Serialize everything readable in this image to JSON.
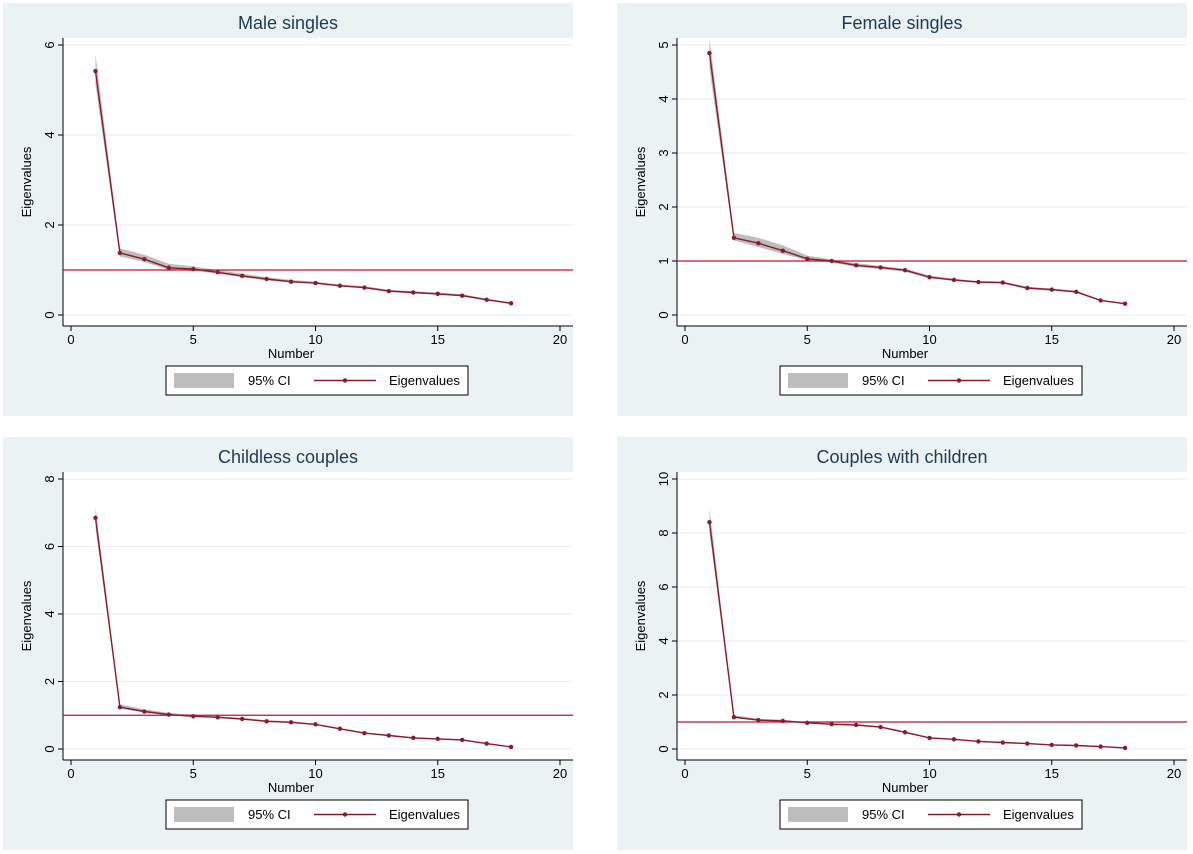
{
  "chart_data": [
    {
      "type": "line",
      "title": "Male singles",
      "xlabel": "Number",
      "ylabel": "Eigenvalues",
      "xlim": [
        0,
        20
      ],
      "ylim": [
        0,
        6
      ],
      "xticks": [
        0,
        5,
        10,
        15,
        20
      ],
      "yticks": [
        0,
        2,
        4,
        6
      ],
      "grid": true,
      "reference_line": {
        "y": 1,
        "color": "#c0152f"
      },
      "legend": {
        "position": "bottom",
        "entries": [
          "95% CI",
          "Eigenvalues"
        ]
      },
      "series": [
        {
          "name": "Eigenvalues",
          "color": "#8b1a2b",
          "x": [
            1,
            2,
            3,
            4,
            5,
            6,
            7,
            8,
            9,
            10,
            11,
            12,
            13,
            14,
            15,
            16,
            17,
            18
          ],
          "values": [
            5.42,
            1.38,
            1.24,
            1.05,
            1.02,
            0.95,
            0.87,
            0.8,
            0.74,
            0.71,
            0.65,
            0.61,
            0.53,
            0.5,
            0.47,
            0.43,
            0.34,
            0.26
          ]
        },
        {
          "name": "95% CI",
          "color": "#bdbdbd",
          "x": [
            1,
            2,
            3,
            4,
            5,
            6,
            7,
            8,
            9,
            10,
            11,
            12,
            13,
            14,
            15,
            16,
            17,
            18
          ],
          "lower": [
            5.12,
            1.3,
            1.18,
            1.0,
            0.98,
            0.92,
            0.84,
            0.77,
            0.72,
            0.69,
            0.63,
            0.59,
            0.51,
            0.48,
            0.45,
            0.41,
            0.32,
            0.25
          ],
          "upper": [
            5.78,
            1.48,
            1.34,
            1.14,
            1.08,
            1.0,
            0.92,
            0.84,
            0.78,
            0.74,
            0.68,
            0.64,
            0.56,
            0.53,
            0.5,
            0.46,
            0.36,
            0.28
          ]
        }
      ]
    },
    {
      "type": "line",
      "title": "Female singles",
      "xlabel": "Number",
      "ylabel": "Eigenvalues",
      "xlim": [
        0,
        20
      ],
      "ylim": [
        0,
        5
      ],
      "xticks": [
        0,
        5,
        10,
        15,
        20
      ],
      "yticks": [
        0,
        1,
        2,
        3,
        4,
        5
      ],
      "grid": true,
      "reference_line": {
        "y": 1,
        "color": "#c0152f"
      },
      "legend": {
        "position": "bottom",
        "entries": [
          "95% CI",
          "Eigenvalues"
        ]
      },
      "series": [
        {
          "name": "Eigenvalues",
          "color": "#8b1a2b",
          "x": [
            1,
            2,
            3,
            4,
            5,
            6,
            7,
            8,
            9,
            10,
            11,
            12,
            13,
            14,
            15,
            16,
            17,
            18
          ],
          "values": [
            4.85,
            1.43,
            1.33,
            1.19,
            1.04,
            1.0,
            0.92,
            0.88,
            0.83,
            0.7,
            0.65,
            0.61,
            0.6,
            0.5,
            0.47,
            0.43,
            0.27,
            0.21
          ]
        },
        {
          "name": "95% CI",
          "color": "#bdbdbd",
          "x": [
            1,
            2,
            3,
            4,
            5,
            6,
            7,
            8,
            9,
            10,
            11,
            12,
            13,
            14,
            15,
            16,
            17,
            18
          ],
          "lower": [
            4.55,
            1.38,
            1.26,
            1.13,
            1.01,
            0.97,
            0.89,
            0.85,
            0.8,
            0.68,
            0.63,
            0.59,
            0.58,
            0.48,
            0.45,
            0.41,
            0.26,
            0.2
          ],
          "upper": [
            5.12,
            1.52,
            1.43,
            1.29,
            1.1,
            1.03,
            0.96,
            0.91,
            0.86,
            0.73,
            0.67,
            0.63,
            0.62,
            0.52,
            0.49,
            0.45,
            0.28,
            0.22
          ]
        }
      ]
    },
    {
      "type": "line",
      "title": "Childless couples",
      "xlabel": "Number",
      "ylabel": "Eigenvalues",
      "xlim": [
        0,
        20
      ],
      "ylim": [
        0,
        8
      ],
      "xticks": [
        0,
        5,
        10,
        15,
        20
      ],
      "yticks": [
        0,
        2,
        4,
        6,
        8
      ],
      "grid": true,
      "reference_line": {
        "y": 1,
        "color": "#c0152f"
      },
      "legend": {
        "position": "bottom",
        "entries": [
          "95% CI",
          "Eigenvalues"
        ]
      },
      "series": [
        {
          "name": "Eigenvalues",
          "color": "#8b1a2b",
          "x": [
            1,
            2,
            3,
            4,
            5,
            6,
            7,
            8,
            9,
            10,
            11,
            12,
            13,
            14,
            15,
            16,
            17,
            18
          ],
          "values": [
            6.85,
            1.24,
            1.11,
            1.02,
            0.97,
            0.94,
            0.89,
            0.82,
            0.79,
            0.73,
            0.6,
            0.47,
            0.4,
            0.33,
            0.3,
            0.27,
            0.16,
            0.06
          ]
        },
        {
          "name": "95% CI",
          "color": "#bdbdbd",
          "x": [
            1,
            2,
            3,
            4,
            5,
            6,
            7,
            8,
            9,
            10,
            11,
            12,
            13,
            14,
            15,
            16,
            17,
            18
          ],
          "lower": [
            6.55,
            1.2,
            1.08,
            1.0,
            0.95,
            0.92,
            0.87,
            0.8,
            0.77,
            0.71,
            0.58,
            0.45,
            0.38,
            0.31,
            0.28,
            0.25,
            0.15,
            0.05
          ],
          "upper": [
            7.15,
            1.32,
            1.18,
            1.07,
            1.01,
            0.97,
            0.92,
            0.85,
            0.82,
            0.75,
            0.62,
            0.49,
            0.42,
            0.35,
            0.32,
            0.29,
            0.17,
            0.07
          ]
        }
      ]
    },
    {
      "type": "line",
      "title": "Couples with children",
      "xlabel": "Number",
      "ylabel": "Eigenvalues",
      "xlim": [
        0,
        20
      ],
      "ylim": [
        0,
        10
      ],
      "xticks": [
        0,
        5,
        10,
        15,
        20
      ],
      "yticks": [
        0,
        2,
        4,
        6,
        8,
        10
      ],
      "grid": true,
      "reference_line": {
        "y": 1,
        "color": "#c0152f"
      },
      "legend": {
        "position": "bottom",
        "entries": [
          "95% CI",
          "Eigenvalues"
        ]
      },
      "series": [
        {
          "name": "Eigenvalues",
          "color": "#8b1a2b",
          "x": [
            1,
            2,
            3,
            4,
            5,
            6,
            7,
            8,
            9,
            10,
            11,
            12,
            13,
            14,
            15,
            16,
            17,
            18
          ],
          "values": [
            8.4,
            1.18,
            1.07,
            1.04,
            0.97,
            0.92,
            0.89,
            0.81,
            0.62,
            0.41,
            0.36,
            0.28,
            0.24,
            0.2,
            0.15,
            0.13,
            0.09,
            0.04
          ]
        },
        {
          "name": "95% CI",
          "color": "#bdbdbd",
          "x": [
            1,
            2,
            3,
            4,
            5,
            6,
            7,
            8,
            9,
            10,
            11,
            12,
            13,
            14,
            15,
            16,
            17,
            18
          ],
          "lower": [
            8.0,
            1.14,
            1.04,
            1.01,
            0.95,
            0.9,
            0.87,
            0.79,
            0.6,
            0.4,
            0.35,
            0.27,
            0.23,
            0.19,
            0.14,
            0.12,
            0.08,
            0.03
          ],
          "upper": [
            8.9,
            1.25,
            1.12,
            1.08,
            1.0,
            0.95,
            0.92,
            0.84,
            0.65,
            0.43,
            0.38,
            0.3,
            0.26,
            0.22,
            0.17,
            0.15,
            0.1,
            0.05
          ]
        }
      ]
    }
  ]
}
